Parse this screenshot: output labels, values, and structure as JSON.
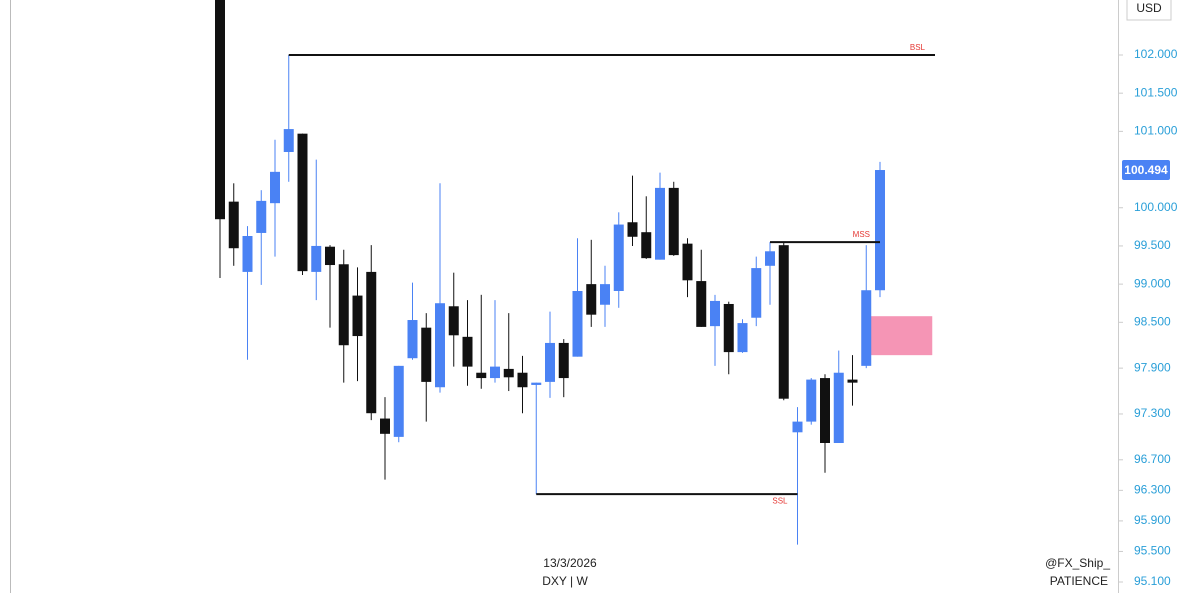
{
  "chart_data": {
    "type": "candlestick",
    "symbol": "DXY | W",
    "date": "13/3/2026",
    "watermark": "@FX_Ship_",
    "caption": "PATIENCE",
    "currency": "USD",
    "last_price": 100.494,
    "up_color": "#4a82f4",
    "down_color": "#111111",
    "open": [
      103.0,
      100.08,
      99.16,
      99.67,
      100.06,
      100.73,
      100.97,
      99.16,
      99.49,
      99.26,
      98.85,
      99.16,
      97.24,
      97.0,
      98.03,
      98.43,
      97.65,
      98.71,
      98.31,
      97.84,
      97.77,
      97.89,
      97.84,
      97.68,
      97.72,
      98.23,
      98.05,
      99.0,
      98.73,
      98.91,
      99.81,
      99.68,
      99.32,
      100.26,
      99.53,
      99.04,
      98.45,
      98.74,
      98.11,
      98.56,
      99.24,
      99.51,
      97.06,
      97.2,
      97.77,
      96.92,
      97.75,
      97.93,
      98.92
    ],
    "high": [
      103.2,
      100.32,
      99.76,
      100.23,
      100.89,
      102.0,
      100.97,
      100.63,
      99.51,
      99.45,
      99.22,
      99.51,
      97.52,
      97.93,
      99.02,
      98.62,
      100.32,
      99.15,
      98.79,
      98.86,
      98.79,
      98.62,
      98.06,
      97.71,
      98.64,
      98.28,
      99.6,
      99.58,
      99.24,
      99.94,
      100.42,
      100.15,
      100.46,
      100.34,
      99.6,
      99.45,
      98.86,
      98.77,
      98.54,
      99.36,
      99.55,
      99.55,
      97.39,
      97.77,
      97.82,
      98.13,
      98.07,
      99.51,
      100.6
    ],
    "low": [
      99.08,
      99.24,
      98.01,
      98.99,
      99.36,
      100.34,
      99.12,
      98.79,
      98.43,
      97.71,
      97.73,
      97.22,
      96.44,
      96.93,
      98.01,
      97.2,
      97.58,
      97.92,
      97.67,
      97.63,
      97.71,
      97.6,
      97.31,
      96.25,
      97.51,
      97.52,
      98.05,
      98.44,
      98.44,
      98.69,
      99.5,
      99.33,
      99.32,
      99.37,
      98.83,
      98.44,
      97.93,
      97.82,
      98.1,
      98.45,
      98.73,
      97.48,
      95.59,
      97.16,
      96.53,
      96.92,
      97.41,
      97.9,
      98.83
    ],
    "close": [
      99.85,
      99.47,
      99.63,
      100.09,
      100.47,
      101.03,
      99.17,
      99.5,
      99.25,
      98.2,
      98.32,
      97.31,
      97.04,
      97.93,
      98.53,
      97.72,
      98.75,
      98.33,
      97.92,
      97.77,
      97.92,
      97.78,
      97.65,
      97.71,
      98.23,
      97.77,
      98.91,
      98.6,
      99.0,
      99.78,
      99.62,
      99.34,
      100.26,
      99.38,
      99.05,
      98.44,
      98.78,
      98.11,
      98.49,
      99.21,
      99.43,
      97.5,
      97.2,
      97.75,
      96.92,
      97.84,
      97.71,
      98.92,
      100.494
    ],
    "levels": [
      {
        "label": "BSL",
        "value": 102.0,
        "from": 5,
        "to": 52
      },
      {
        "label": "MSS",
        "value": 99.55,
        "from": 40,
        "to": 48
      },
      {
        "label": "SSL",
        "value": 96.25,
        "from": 23,
        "to": 42
      }
    ],
    "zone": {
      "low": 98.07,
      "high": 98.58,
      "from": 47,
      "to": 51.8,
      "color": "#f48fb1"
    },
    "ylim": [
      94.956,
      102.72
    ],
    "yticks": [
      {
        "value": 95.1,
        "label": "95.100"
      },
      {
        "value": 95.5,
        "label": "95.500"
      },
      {
        "value": 95.9,
        "label": "95.900"
      },
      {
        "value": 96.3,
        "label": "96.300"
      },
      {
        "value": 96.7,
        "label": "96.700"
      },
      {
        "value": 97.3,
        "label": "97.300"
      },
      {
        "value": 97.9,
        "label": "97.900"
      },
      {
        "value": 98.5,
        "label": "98.500"
      },
      {
        "value": 99.0,
        "label": "99.000"
      },
      {
        "value": 99.5,
        "label": "99.500"
      },
      {
        "value": 100.0,
        "label": "100.000"
      },
      {
        "value": 101.0,
        "label": "101.000"
      },
      {
        "value": 101.5,
        "label": "101.500"
      },
      {
        "value": 102.0,
        "label": "102.000"
      }
    ]
  }
}
